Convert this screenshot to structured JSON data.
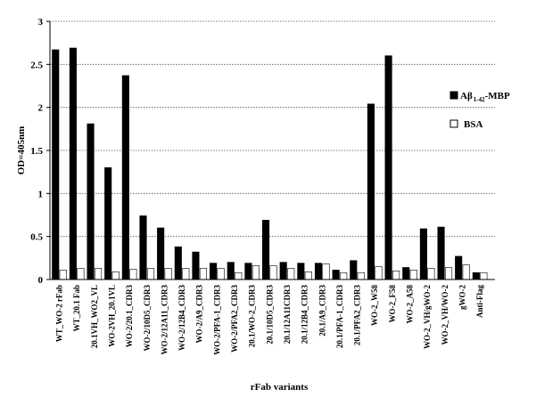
{
  "chart_data": {
    "type": "bar",
    "title": "",
    "xlabel": "rFab variants",
    "ylabel": "OD=405nm",
    "ylim": [
      0,
      3
    ],
    "yticks": [
      "0",
      "0.5",
      "1",
      "1.5",
      "2",
      "2.5",
      "3"
    ],
    "grid": "horizontal dotted",
    "legend_placement": "right",
    "categories": [
      "WT_WO-2 rFab",
      "WT_20.1 Fab",
      "20.1VH_WO2_VL",
      "WO-2VH_20.1VL",
      "WO-2/20.1_CDR3",
      "WO-2/10D5_CDR3",
      "WO-2/12A11_CDR3",
      "WO-2/12B4_CDR3",
      "WO-2/A9_CDR3",
      "WO-2/PFA-1_CDR3",
      "WO-2/PFA2_CDR3",
      "20.1/WO-2_CDR3",
      "20.1/10D5_CDR3",
      "20.1/12A11CDR3",
      "20.1/12B4_CDR3",
      "20.1/A9_CDR3",
      "20.1/PFA-1_CDR3",
      "20.1/PFA2_CDR3",
      "WO-2_W58",
      "WO-2_F58",
      "WO-2_A58",
      "WO-2_VH/gWO-2",
      "WO-2_VH/WO-2",
      "gWO-2",
      "Anti-Flag"
    ],
    "series": [
      {
        "name": "Aβ 1-42-MBP",
        "color": "#000000",
        "values": [
          2.67,
          2.69,
          1.81,
          1.3,
          2.37,
          0.74,
          0.6,
          0.38,
          0.32,
          0.19,
          0.2,
          0.19,
          0.69,
          0.2,
          0.19,
          0.19,
          0.11,
          0.22,
          2.04,
          2.6,
          0.14,
          0.59,
          0.61,
          0.27,
          0.08
        ]
      },
      {
        "name": "BSA",
        "color": "#ffffff",
        "values": [
          0.11,
          0.13,
          0.13,
          0.09,
          0.12,
          0.13,
          0.13,
          0.13,
          0.13,
          0.13,
          0.08,
          0.16,
          0.16,
          0.13,
          0.09,
          0.18,
          0.08,
          0.08,
          0.15,
          0.1,
          0.11,
          0.13,
          0.14,
          0.17,
          0.08
        ]
      }
    ],
    "legend": {
      "series1_main": "Aβ",
      "series1_sub": "1-42",
      "series1_suffix": "-MBP",
      "series2": "BSA"
    }
  }
}
